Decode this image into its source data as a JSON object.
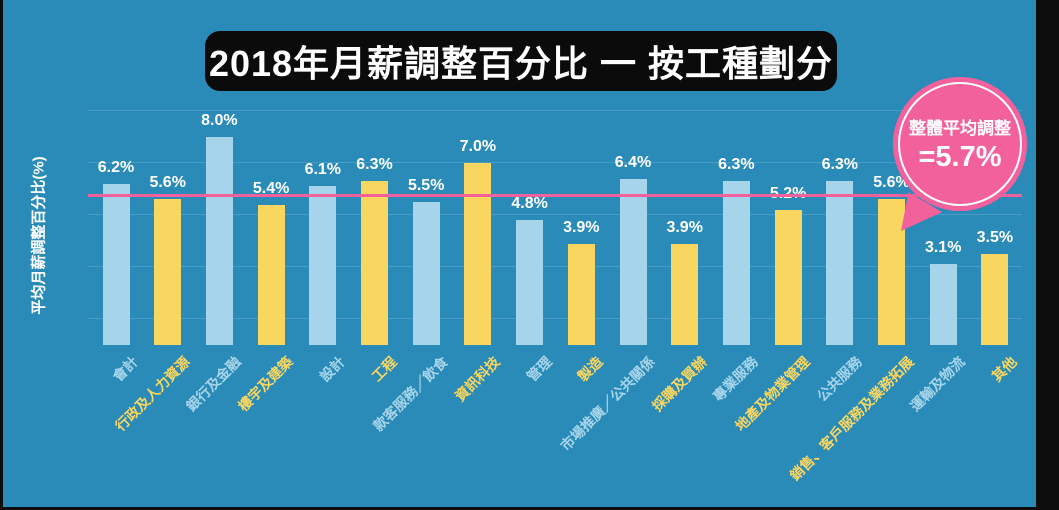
{
  "title": "2018年月薪調整百分比 一 按工種劃分",
  "y_axis_label": "平均月薪調整百分比(%)",
  "average_badge": {
    "line1": "整體平均調整",
    "line2": "=5.7%",
    "value": 5.7
  },
  "colors": {
    "background": "#2A8BB8",
    "bar_blue": "#A6D4EA",
    "bar_yellow": "#F9D65F",
    "accent_pink": "#F2619C",
    "title_bg": "#0B0B0B",
    "text_white": "#FFFFFF",
    "frame_black": "#0D0D0D"
  },
  "chart_data": {
    "type": "bar",
    "title": "2018年月薪調整百分比 一 按工種劃分",
    "xlabel": "",
    "ylabel": "平均月薪調整百分比(%)",
    "ylim": [
      0,
      9.5
    ],
    "grid": "faint horizontal lines every 2% starting at 1%",
    "gridline_values": [
      1,
      3,
      5,
      7,
      9
    ],
    "legend": "none",
    "categories": [
      "會計",
      "行政及人力資源",
      "銀行及金融",
      "樓宇及建築",
      "設計",
      "工程",
      "款客服務／飲食",
      "資訊科技",
      "管理",
      "製造",
      "市場推廣／公共關係",
      "採購及買辦",
      "專業服務",
      "地產及物業管理",
      "公共服務",
      "銷售、客戶服務及業務拓展",
      "運輸及物流",
      "其他"
    ],
    "values": [
      6.2,
      5.6,
      8.0,
      5.4,
      6.1,
      6.3,
      5.5,
      7.0,
      4.8,
      3.9,
      6.4,
      3.9,
      6.3,
      5.2,
      6.3,
      5.6,
      3.1,
      3.5
    ],
    "value_labels": [
      "6.2%",
      "5.6%",
      "8.0%",
      "5.4%",
      "6.1%",
      "6.3%",
      "5.5%",
      "7.0%",
      "4.8%",
      "3.9%",
      "6.4%",
      "3.9%",
      "6.3%",
      "5.2%",
      "6.3%",
      "5.6%",
      "3.1%",
      "3.5%"
    ],
    "bar_color_pattern": [
      "#A6D4EA",
      "#F9D65F"
    ],
    "average_line": {
      "value": 5.7,
      "color": "#F2619C",
      "label": "整體平均調整 =5.7%"
    }
  }
}
